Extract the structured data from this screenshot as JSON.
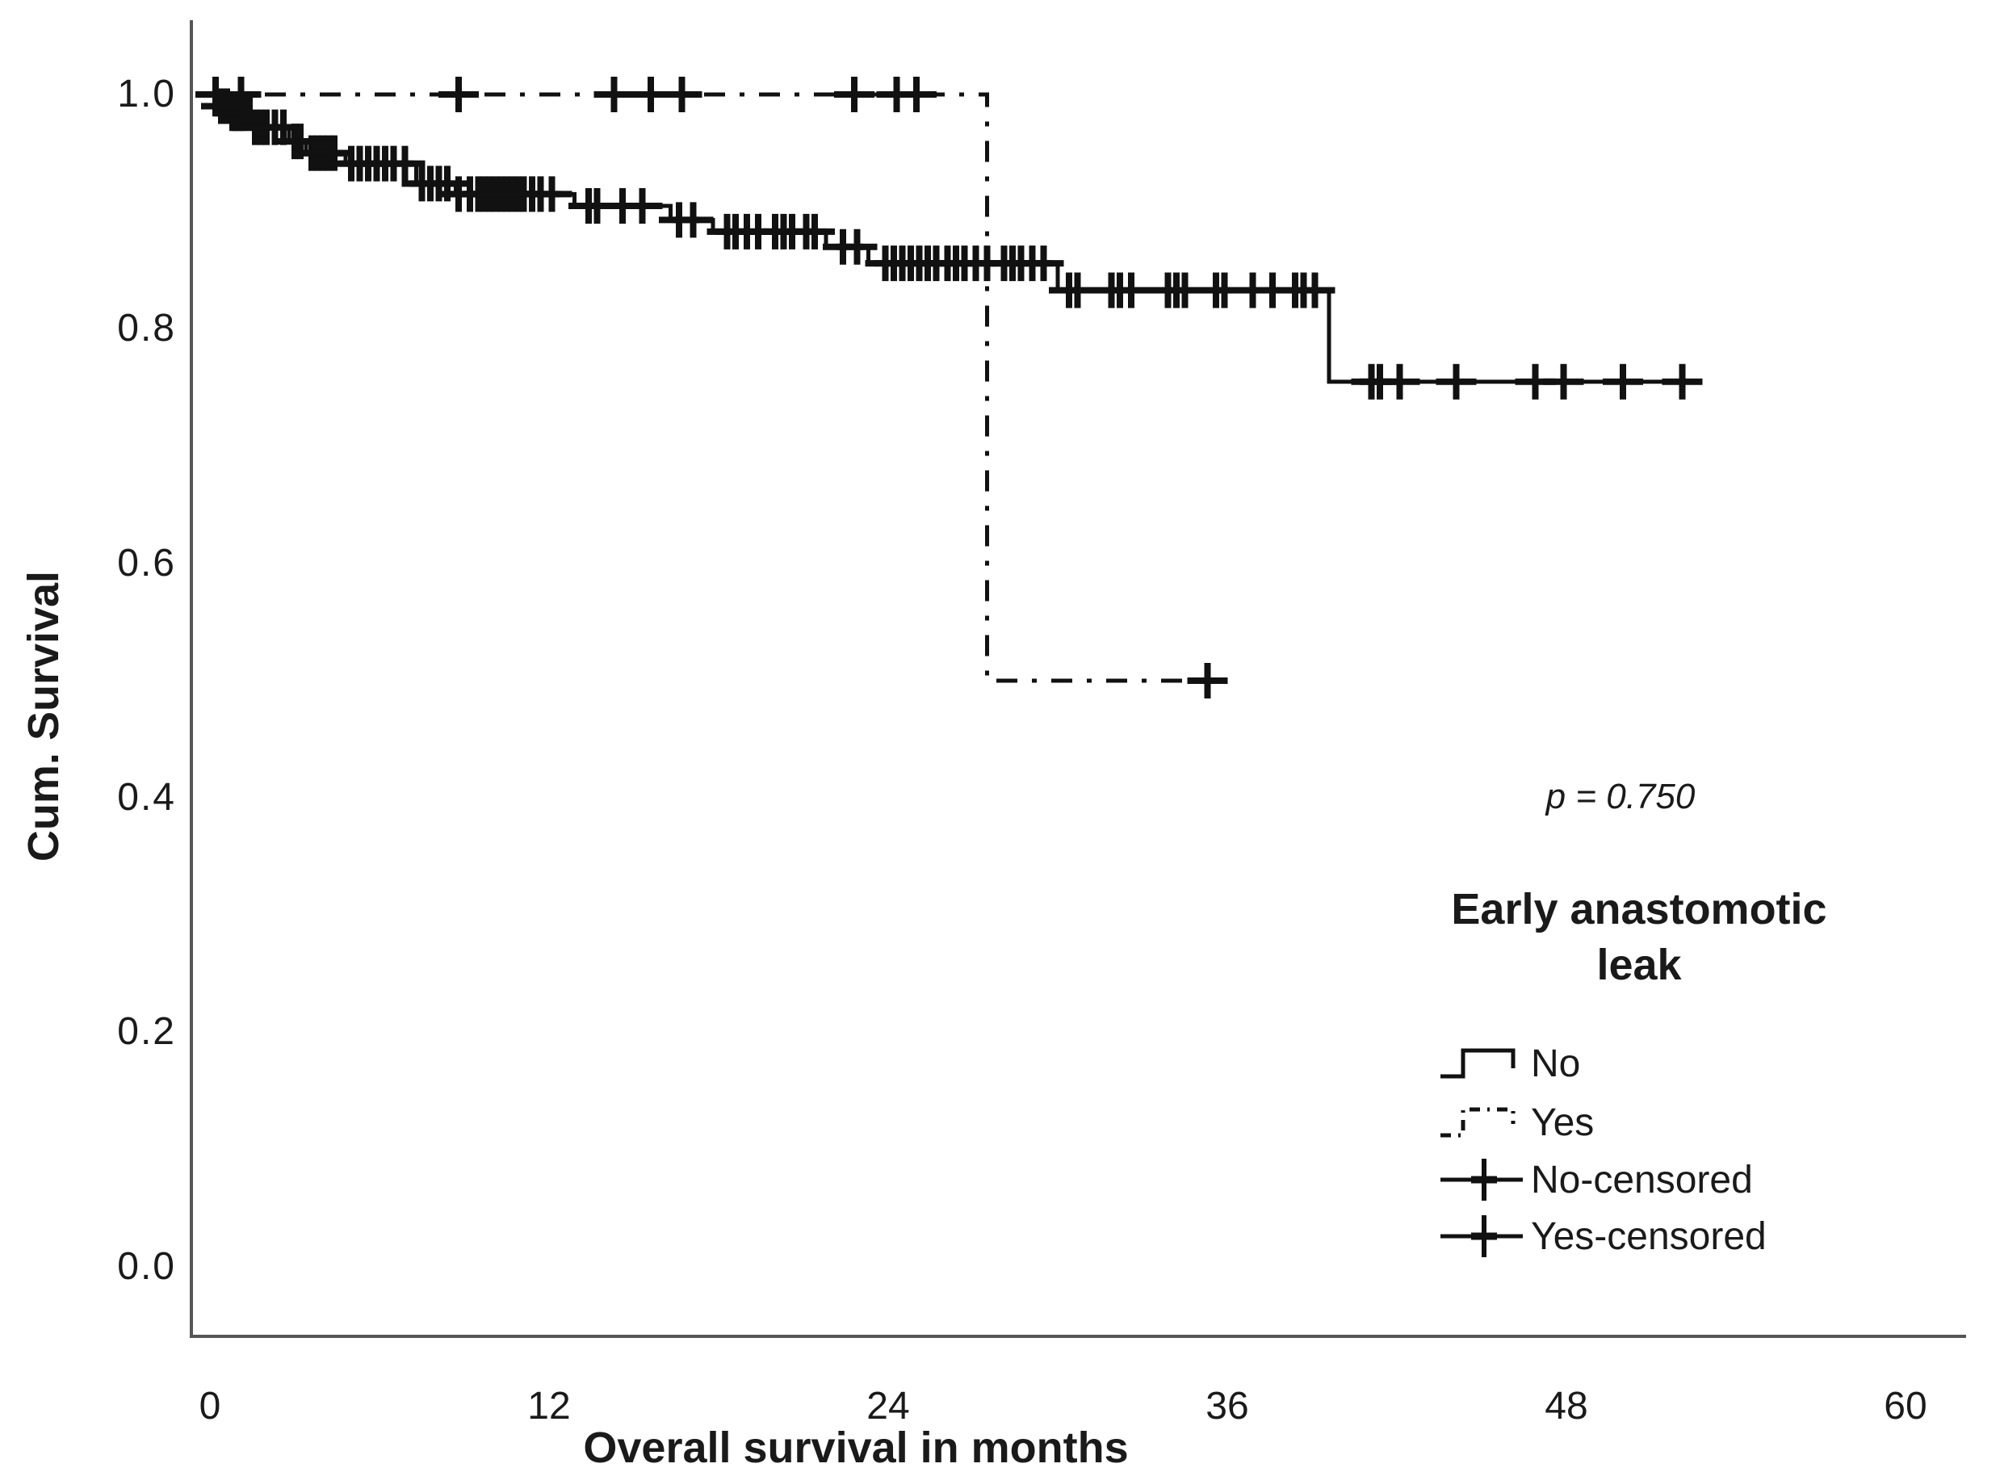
{
  "figure": {
    "p_value_label": "p = 0.750"
  },
  "chart_data": {
    "type": "line",
    "subtype": "kaplan_meier_survival",
    "title": "",
    "xlabel": "Overall survival in months",
    "ylabel": "Cum. Survival",
    "xticks": [
      "0",
      "12",
      "24",
      "36",
      "48",
      "60"
    ],
    "yticks": [
      "0.0",
      "0.2",
      "0.4",
      "0.6",
      "0.8",
      "1.0"
    ],
    "xlim": [
      0,
      62
    ],
    "ylim": [
      -0.06,
      1.06
    ],
    "grid": false,
    "annotation": "p = 0.750",
    "legend_position": "inside lower right",
    "legend_title": "Early anastomotic leak",
    "legend_entries": [
      "No",
      "Yes",
      "No-censored",
      "Yes-censored"
    ],
    "series": [
      {
        "name": "Yes",
        "style": "dashdot",
        "steps": [
          [
            0,
            1.0
          ],
          [
            27.5,
            0.5
          ]
        ],
        "end_month": 35.3,
        "censored_months": [
          1.1,
          8.8,
          14.3,
          15.6,
          16.7,
          22.8,
          24.3,
          25.0,
          35.3
        ]
      },
      {
        "name": "No",
        "style": "solid",
        "steps": [
          [
            0,
            1.0
          ],
          [
            0.3,
            0.99
          ],
          [
            0.8,
            0.984
          ],
          [
            1.5,
            0.972
          ],
          [
            2.8,
            0.96
          ],
          [
            3.4,
            0.95
          ],
          [
            4.8,
            0.941
          ],
          [
            7.3,
            0.924
          ],
          [
            8.7,
            0.915
          ],
          [
            12.9,
            0.905
          ],
          [
            16.3,
            0.893
          ],
          [
            17.8,
            0.883
          ],
          [
            21.8,
            0.87
          ],
          [
            23.3,
            0.856
          ],
          [
            30.0,
            0.833
          ],
          [
            39.6,
            0.755
          ]
        ],
        "end_month": 52.3,
        "censored_months": [
          0.2,
          0.4,
          0.5,
          0.6,
          0.8,
          0.9,
          1.0,
          1.1,
          1.2,
          1.4,
          1.6,
          1.8,
          2.0,
          2.3,
          2.6,
          3.0,
          3.2,
          3.6,
          3.8,
          4.0,
          4.2,
          4.4,
          5.0,
          5.3,
          5.6,
          5.9,
          6.2,
          6.5,
          6.9,
          7.5,
          7.8,
          8.1,
          8.4,
          8.8,
          9.2,
          9.5,
          9.7,
          9.9,
          10.1,
          10.3,
          10.5,
          10.7,
          10.9,
          11.1,
          11.4,
          11.7,
          12.1,
          13.4,
          13.7,
          14.6,
          15.3,
          16.6,
          17.1,
          18.3,
          18.6,
          19.0,
          19.4,
          20.0,
          20.3,
          20.6,
          21.1,
          21.4,
          22.4,
          22.9,
          23.9,
          24.2,
          24.5,
          24.8,
          25.1,
          25.4,
          25.7,
          26.1,
          26.4,
          26.7,
          27.1,
          27.5,
          28.1,
          28.4,
          28.7,
          29.1,
          29.5,
          30.4,
          30.7,
          31.9,
          32.2,
          32.6,
          33.9,
          34.2,
          34.5,
          35.6,
          35.9,
          36.9,
          37.6,
          38.4,
          38.7,
          39.1,
          41.1,
          41.4,
          42.1,
          44.1,
          46.9,
          47.9,
          50.0,
          52.1
        ]
      }
    ]
  },
  "colors": {
    "curve": "#111111",
    "axis": "#555555",
    "text": "#1a1a1a"
  }
}
